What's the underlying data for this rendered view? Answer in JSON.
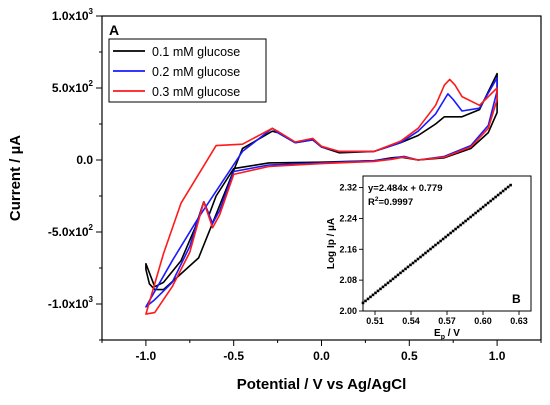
{
  "chart_data": [
    {
      "panel_label": "A",
      "type": "line",
      "xlabel": "Potential / V vs Ag/AgCl",
      "ylabel": "Current / µA",
      "xlim": [
        -1.25,
        1.25
      ],
      "ylim": [
        -1250,
        1000
      ],
      "x_ticks": [
        -1.0,
        -0.5,
        0.0,
        0.5,
        1.0
      ],
      "x_tick_labels": [
        "-1.0",
        "-0.5",
        "0.0",
        "0.5",
        "1.0"
      ],
      "y_ticks": [
        -1000,
        -500,
        0,
        500,
        1000
      ],
      "y_tick_labels": [
        {
          "mantissa": "-1.0x10",
          "exp": "3"
        },
        {
          "mantissa": "-5.0x10",
          "exp": "2"
        },
        {
          "mantissa": "0.0",
          "exp": ""
        },
        {
          "mantissa": "5.0x10",
          "exp": "2"
        },
        {
          "mantissa": "1.0x10",
          "exp": "3"
        }
      ],
      "legend_position": "top-left",
      "series": [
        {
          "name": "0.1 mM glucose",
          "color": "#000000",
          "x": [
            -0.9,
            -0.7,
            -0.45,
            -0.28,
            -0.25,
            -0.15,
            -0.05,
            0.0,
            0.1,
            0.3,
            0.45,
            0.55,
            0.65,
            0.7,
            0.8,
            0.9,
            1.0,
            1.0,
            0.95,
            0.85,
            0.7,
            0.55,
            0.45,
            0.4,
            0.3,
            0.0,
            -0.3,
            -0.5,
            -0.6,
            -0.64,
            -0.67,
            -0.72,
            -0.8,
            -0.9,
            -0.95,
            -1.0,
            -1.0,
            -0.98,
            -0.95
          ],
          "y": [
            -900,
            -680,
            80,
            200,
            190,
            120,
            140,
            90,
            50,
            60,
            120,
            170,
            250,
            300,
            300,
            350,
            600,
            330,
            190,
            80,
            15,
            0,
            20,
            15,
            -5,
            -15,
            -20,
            -60,
            -250,
            -380,
            -290,
            -470,
            -700,
            -850,
            -880,
            -720,
            -760,
            -860,
            -900
          ]
        },
        {
          "name": "0.2 mM glucose",
          "color": "#1a1aff",
          "x": [
            -1.0,
            -0.85,
            -0.7,
            -0.45,
            -0.28,
            -0.25,
            -0.15,
            -0.05,
            0.0,
            0.1,
            0.3,
            0.45,
            0.55,
            0.65,
            0.7,
            0.72,
            0.75,
            0.8,
            0.9,
            1.0,
            1.0,
            0.95,
            0.85,
            0.7,
            0.55,
            0.47,
            0.4,
            0.3,
            0.0,
            -0.3,
            -0.5,
            -0.58,
            -0.62,
            -0.67,
            -0.75,
            -0.85,
            -0.95,
            -1.0
          ],
          "y": [
            -1020,
            -700,
            -400,
            60,
            220,
            190,
            120,
            140,
            90,
            60,
            60,
            120,
            200,
            320,
            420,
            460,
            420,
            340,
            360,
            570,
            480,
            240,
            100,
            25,
            0,
            25,
            10,
            -5,
            -20,
            -35,
            -80,
            -350,
            -440,
            -290,
            -600,
            -850,
            -970,
            -1020
          ]
        },
        {
          "name": "0.3 mM glucose",
          "color": "#ff1a1a",
          "x": [
            -1.0,
            -0.9,
            -0.8,
            -0.6,
            -0.45,
            -0.28,
            -0.25,
            -0.15,
            -0.05,
            0.0,
            0.1,
            0.3,
            0.45,
            0.55,
            0.65,
            0.7,
            0.73,
            0.76,
            0.8,
            0.9,
            1.0,
            1.0,
            0.95,
            0.85,
            0.7,
            0.55,
            0.47,
            0.4,
            0.3,
            0.0,
            -0.3,
            -0.5,
            -0.58,
            -0.62,
            -0.67,
            -0.75,
            -0.85,
            -0.95,
            -1.0
          ],
          "y": [
            -1070,
            -650,
            -300,
            100,
            110,
            220,
            200,
            125,
            150,
            95,
            60,
            60,
            130,
            220,
            380,
            520,
            560,
            520,
            440,
            380,
            500,
            420,
            220,
            90,
            20,
            0,
            20,
            5,
            -10,
            -25,
            -45,
            -100,
            -380,
            -470,
            -290,
            -640,
            -880,
            -1060,
            -1070
          ]
        }
      ]
    },
    {
      "panel_label": "B",
      "type": "scatter",
      "xlabel_main": "E",
      "xlabel_sub": "p",
      "xlabel_rest": " / V",
      "ylabel": "Log Ip / µA",
      "xlim": [
        0.5,
        0.64
      ],
      "ylim": [
        2.0,
        2.35
      ],
      "x_ticks": [
        0.51,
        0.54,
        0.57,
        0.6,
        0.63
      ],
      "x_tick_labels": [
        "0.51",
        "0.54",
        "0.57",
        "0.60",
        "0.63"
      ],
      "y_ticks": [
        2.0,
        2.08,
        2.16,
        2.24,
        2.32
      ],
      "y_tick_labels": [
        "2.00",
        "2.08",
        "2.16",
        "2.24",
        "2.32"
      ],
      "annotation_lines": [
        "y=2.484x + 0.779"
      ],
      "r2": {
        "prefix": "R",
        "sup": "2",
        "suffix": "=0.9997"
      },
      "fit": {
        "slope": 2.484,
        "intercept": 0.779
      },
      "x_range_points": [
        0.5,
        0.623
      ],
      "n_points": 60
    }
  ]
}
